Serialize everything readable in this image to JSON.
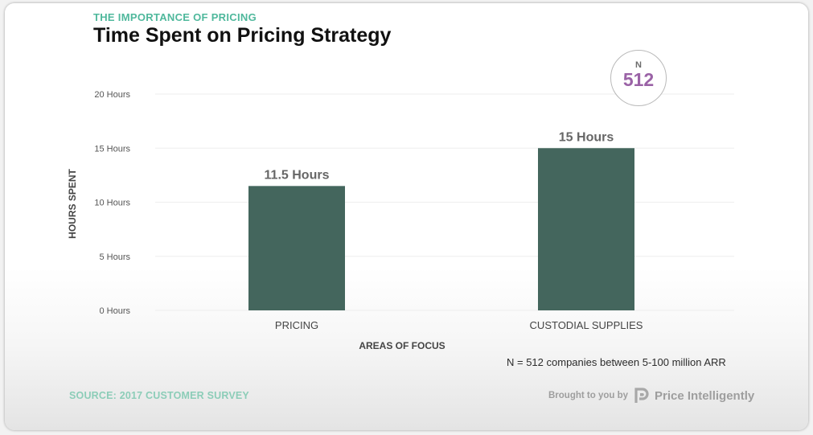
{
  "header": {
    "kicker": "THE IMPORTANCE OF PRICING",
    "title": "Time Spent on Pricing Strategy"
  },
  "badge": {
    "label": "N",
    "value": "512"
  },
  "footer": {
    "note": "N = 512 companies between 5-100 million ARR",
    "source": "SOURCE: 2017 CUSTOMER SURVEY",
    "brought_by": "Brought to you by",
    "brand_name": "Price Intelligently"
  },
  "colors": {
    "bar": "#44665d",
    "kicker": "#4fb89c",
    "badge_value": "#9a62a6",
    "source": "#8ccdb8"
  },
  "chart_data": {
    "type": "bar",
    "title": "Time Spent on Pricing Strategy",
    "xlabel": "AREAS OF FOCUS",
    "ylabel": "HOURS SPENT",
    "categories": [
      "PRICING",
      "CUSTODIAL SUPPLIES"
    ],
    "values": [
      11.5,
      15
    ],
    "data_labels": [
      "11.5 Hours",
      "15 Hours"
    ],
    "yticks": [
      0,
      5,
      10,
      15,
      20
    ],
    "ytick_labels": [
      "0 Hours",
      "5 Hours",
      "10 Hours",
      "15 Hours",
      "20 Hours"
    ],
    "ylim": [
      0,
      20
    ],
    "grid": true
  }
}
